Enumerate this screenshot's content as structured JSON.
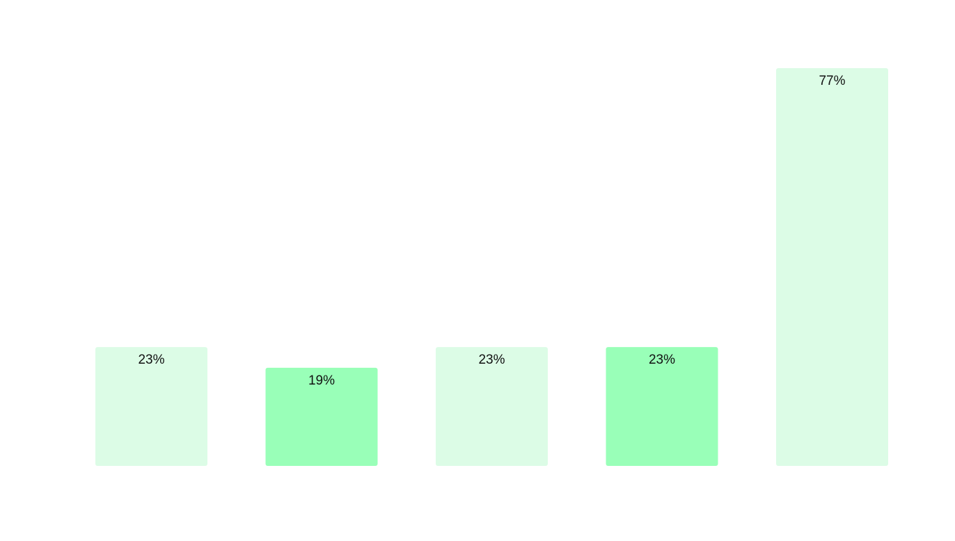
{
  "chart_data": {
    "type": "bar",
    "values": [
      23,
      19,
      23,
      23,
      77
    ],
    "data_labels": [
      "23%",
      "19%",
      "23%",
      "23%",
      "77%"
    ],
    "colors": [
      "#dcfce6",
      "#99ffb8",
      "#dcfce6",
      "#99ffb8",
      "#dcfce6"
    ],
    "ylim": [
      0,
      77
    ],
    "grid": false,
    "legend": "none"
  }
}
